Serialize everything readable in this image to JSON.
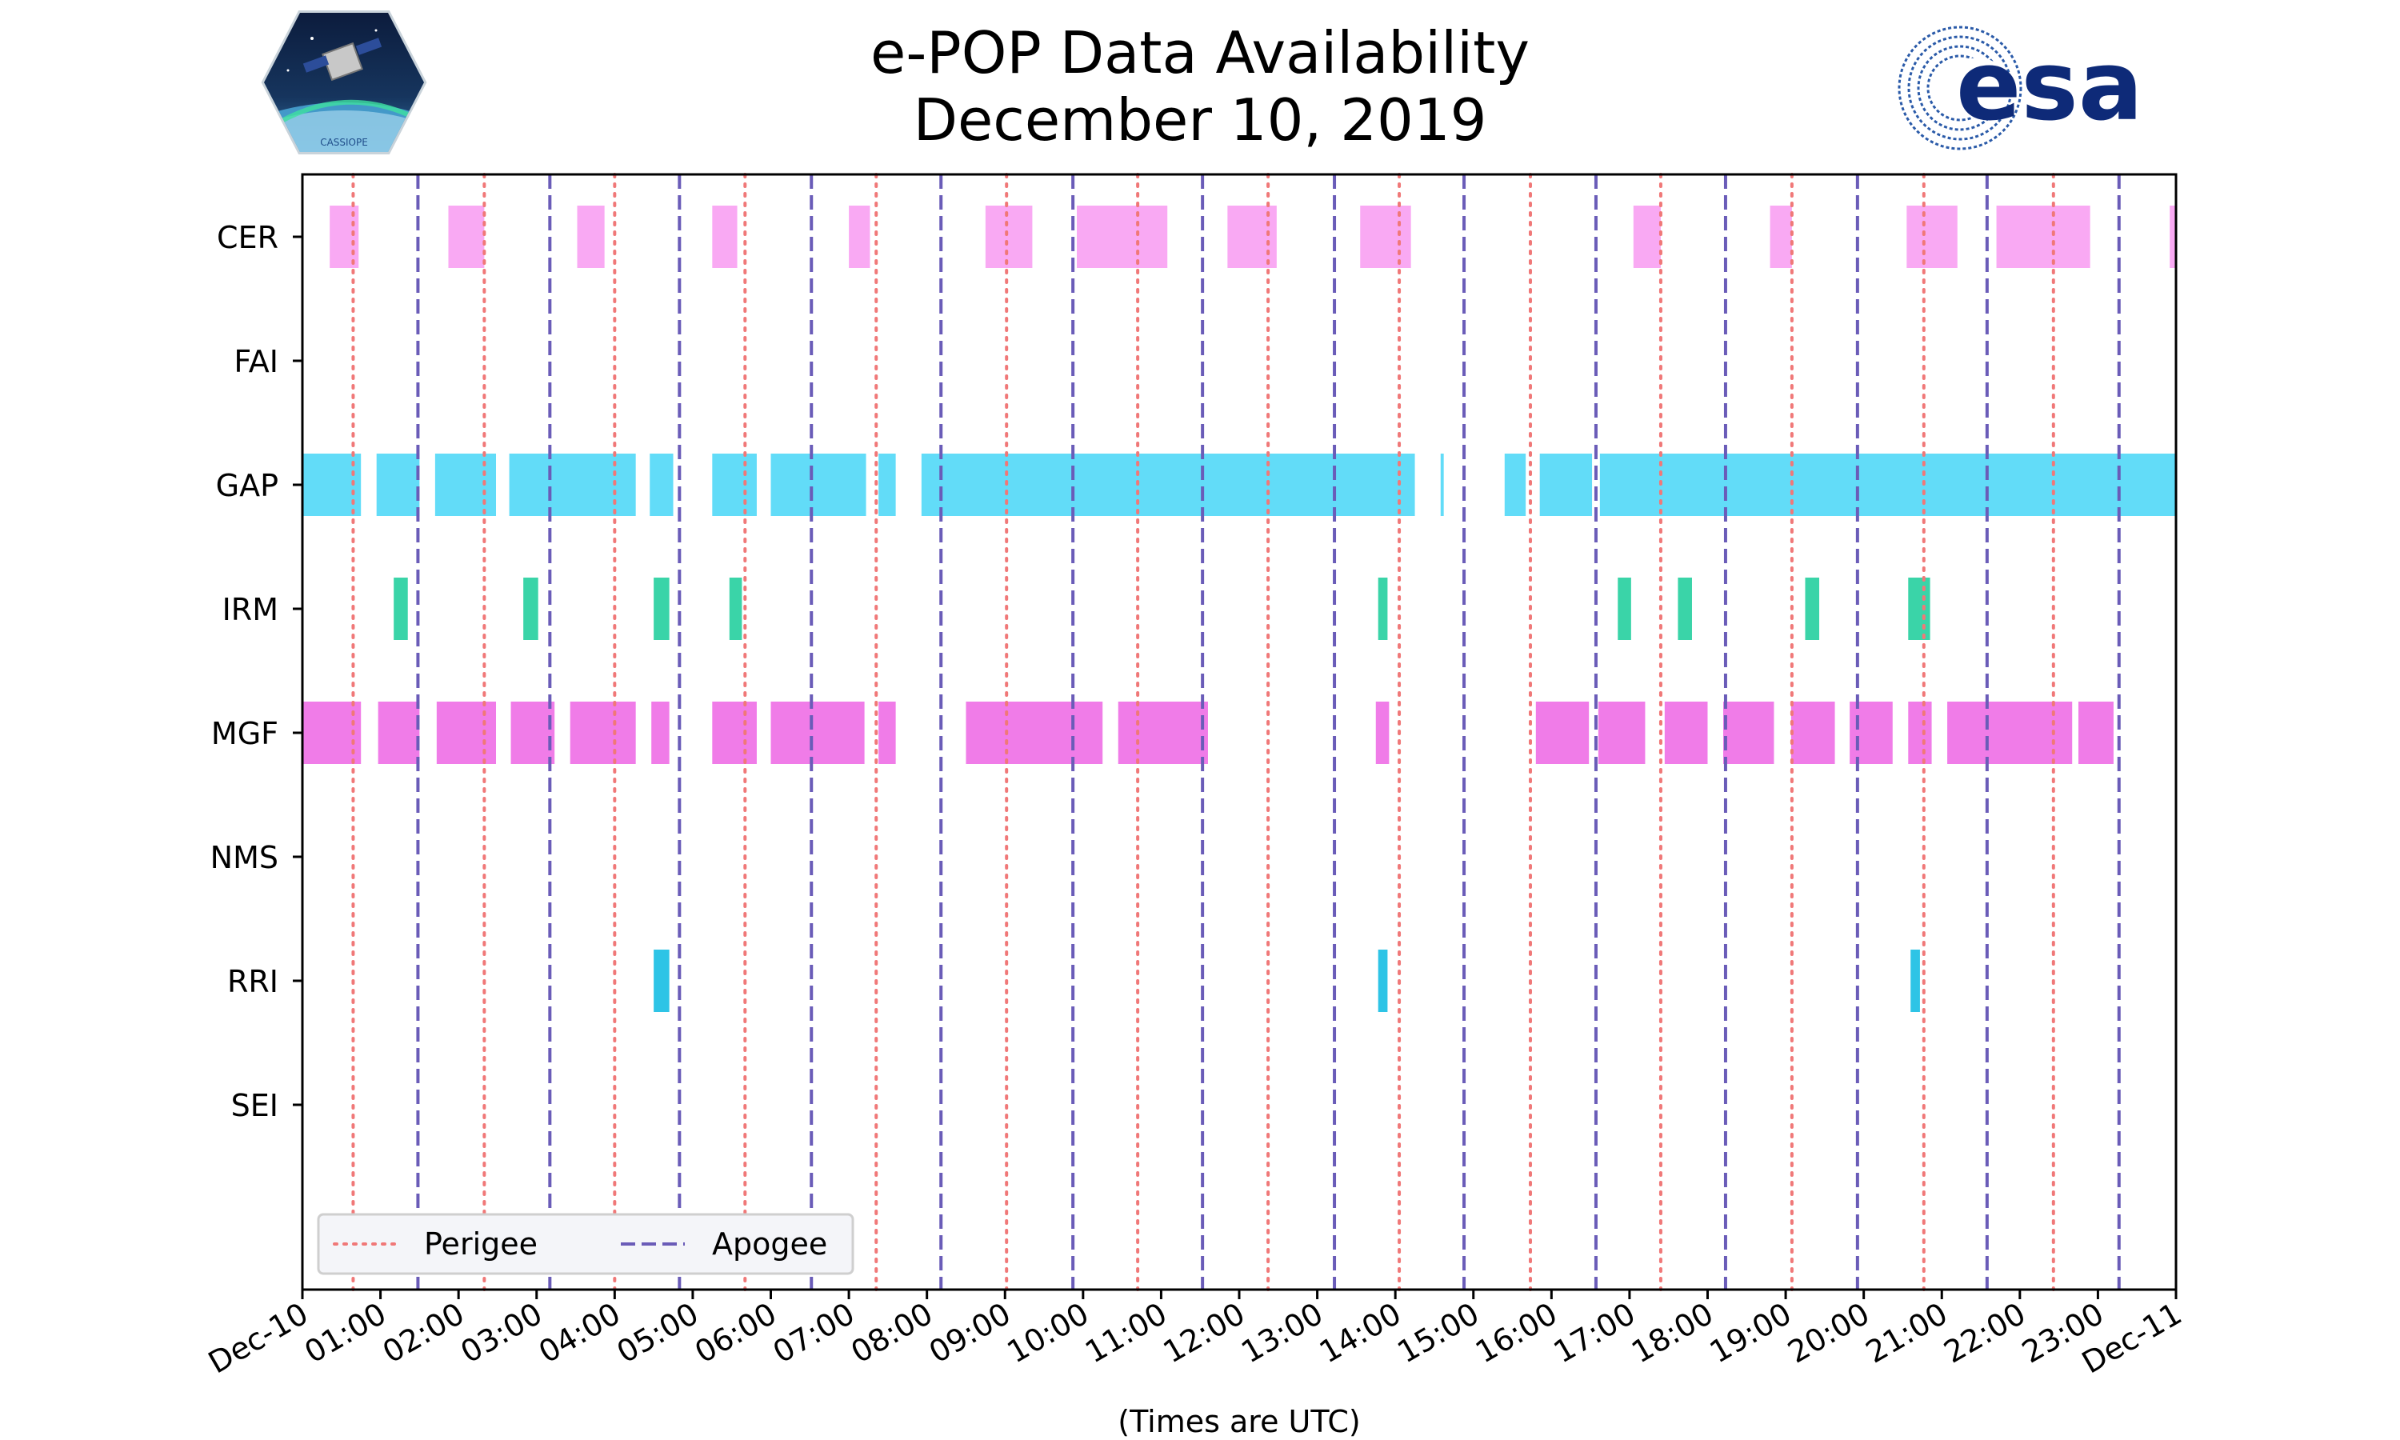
{
  "chart_data": {
    "type": "timeline",
    "title_line1": "e-POP Data Availability",
    "title_line2": "December 10, 2019",
    "xlabel": "(Times are UTC)",
    "xlim_hours": [
      0,
      24
    ],
    "x_tick_labels": [
      "Dec-10",
      "01:00",
      "02:00",
      "03:00",
      "04:00",
      "05:00",
      "06:00",
      "07:00",
      "08:00",
      "09:00",
      "10:00",
      "11:00",
      "12:00",
      "13:00",
      "14:00",
      "15:00",
      "16:00",
      "17:00",
      "18:00",
      "19:00",
      "20:00",
      "21:00",
      "22:00",
      "23:00",
      "Dec-11"
    ],
    "instruments": [
      "CER",
      "FAI",
      "GAP",
      "IRM",
      "MGF",
      "NMS",
      "RRI",
      "SEI"
    ],
    "colors": {
      "CER": "#f9a9f3",
      "FAI": "#cccccc",
      "GAP": "#62dcf8",
      "IRM": "#3ad4a8",
      "MGF": "#f07ce8",
      "NMS": "#cccccc",
      "RRI": "#2ec4e6",
      "SEI": "#cccccc",
      "perigee": "#f07878",
      "apogee": "#6a5cb8",
      "axis": "#000000"
    },
    "intervals": {
      "CER": [
        [
          0.35,
          0.72
        ],
        [
          1.87,
          2.33
        ],
        [
          3.52,
          3.87
        ],
        [
          5.25,
          5.57
        ],
        [
          7.0,
          7.27
        ],
        [
          8.75,
          9.35
        ],
        [
          9.92,
          11.08
        ],
        [
          11.85,
          12.48
        ],
        [
          13.55,
          14.2
        ],
        [
          17.05,
          17.4
        ],
        [
          18.8,
          19.08
        ],
        [
          20.55,
          21.2
        ],
        [
          21.7,
          22.9
        ],
        [
          23.92,
          24.0
        ]
      ],
      "FAI": [],
      "GAP": [
        [
          0.0,
          0.75
        ],
        [
          0.95,
          1.5
        ],
        [
          1.7,
          2.48
        ],
        [
          2.65,
          4.27
        ],
        [
          4.45,
          4.75
        ],
        [
          5.25,
          5.82
        ],
        [
          6.0,
          7.22
        ],
        [
          7.38,
          7.6
        ],
        [
          7.93,
          14.25
        ],
        [
          14.58,
          14.62
        ],
        [
          15.4,
          15.67
        ],
        [
          15.85,
          16.52
        ],
        [
          16.62,
          24.0
        ]
      ],
      "IRM": [
        [
          1.17,
          1.35
        ],
        [
          2.83,
          3.02
        ],
        [
          4.5,
          4.7
        ],
        [
          5.47,
          5.63
        ],
        [
          13.78,
          13.9
        ],
        [
          16.85,
          17.02
        ],
        [
          17.62,
          17.8
        ],
        [
          19.25,
          19.43
        ],
        [
          20.57,
          20.85
        ]
      ],
      "MGF": [
        [
          0.0,
          0.75
        ],
        [
          0.97,
          1.5
        ],
        [
          1.72,
          2.48
        ],
        [
          2.67,
          3.23
        ],
        [
          3.43,
          4.27
        ],
        [
          4.47,
          4.7
        ],
        [
          5.25,
          5.82
        ],
        [
          6.0,
          7.2
        ],
        [
          7.38,
          7.6
        ],
        [
          8.5,
          10.25
        ],
        [
          10.45,
          11.6
        ],
        [
          13.75,
          13.92
        ],
        [
          15.8,
          16.48
        ],
        [
          16.6,
          17.2
        ],
        [
          17.45,
          18.0
        ],
        [
          18.2,
          18.85
        ],
        [
          19.07,
          19.63
        ],
        [
          19.82,
          20.37
        ],
        [
          20.57,
          20.87
        ],
        [
          21.07,
          22.67
        ],
        [
          22.75,
          23.2
        ]
      ],
      "NMS": [],
      "RRI": [
        [
          4.5,
          4.7
        ],
        [
          13.78,
          13.9
        ],
        [
          20.6,
          20.72
        ]
      ],
      "SEI": []
    },
    "perigee_hours": [
      0.65,
      2.33,
      4.0,
      5.67,
      7.35,
      9.02,
      10.7,
      12.37,
      14.05,
      15.73,
      17.4,
      19.08,
      20.77,
      22.43
    ],
    "apogee_hours": [
      1.48,
      3.17,
      4.83,
      6.52,
      8.18,
      9.87,
      11.53,
      13.22,
      14.88,
      16.57,
      18.23,
      19.92,
      21.58,
      23.27
    ],
    "legend": {
      "perigee_label": "Perigee",
      "apogee_label": "Apogee",
      "placement": "lower-left"
    }
  },
  "logos": {
    "cassiope_text": "CASSIOPE",
    "esa_text": "esa"
  }
}
